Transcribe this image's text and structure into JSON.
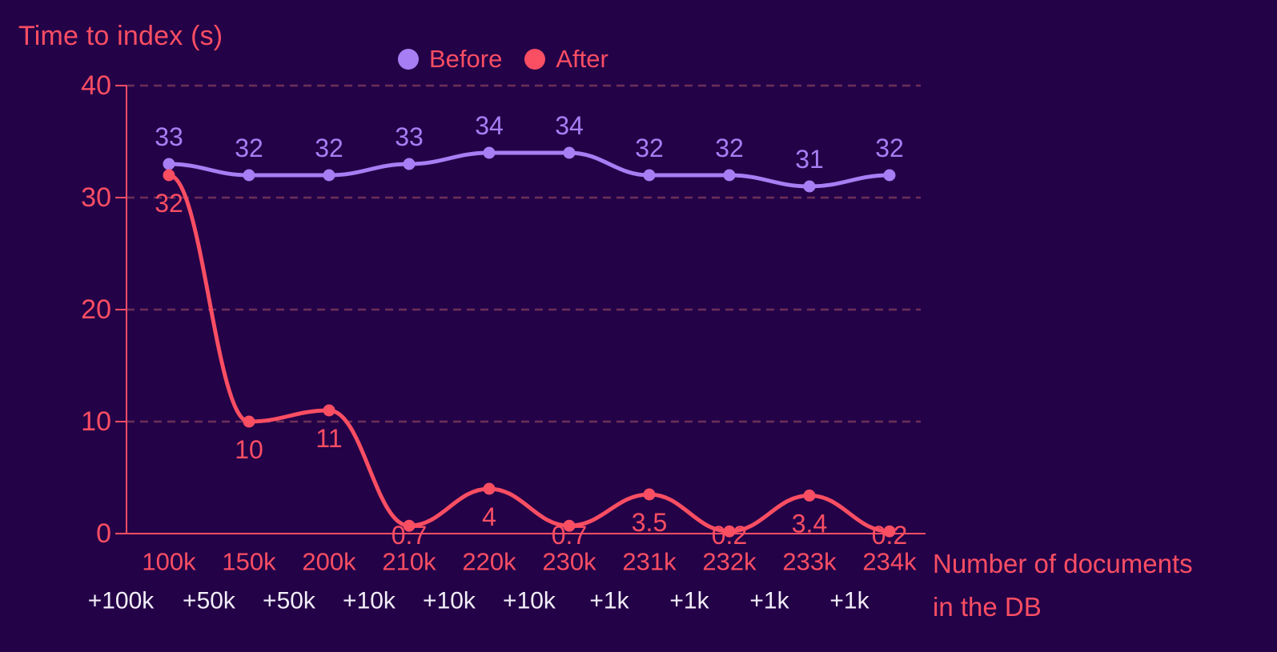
{
  "chart_data": {
    "type": "line",
    "title": "Time to index (s)",
    "x_axis_label_lines": [
      "Number of documents",
      "in the DB"
    ],
    "categories": [
      "100k",
      "150k",
      "200k",
      "210k",
      "220k",
      "230k",
      "231k",
      "232k",
      "233k",
      "234k"
    ],
    "delta_labels": [
      "+100k",
      "+50k",
      "+50k",
      "+10k",
      "+10k",
      "+10k",
      "+1k",
      "+1k",
      "+1k",
      "+1k"
    ],
    "y_ticks": [
      0,
      10,
      20,
      30,
      40
    ],
    "ylim": [
      0,
      40
    ],
    "grid": "horizontal-dashed",
    "legend_position": "top-center",
    "series": [
      {
        "name": "Before",
        "color": "#a77ef3",
        "values": [
          33,
          32,
          32,
          33,
          34,
          34,
          32,
          32,
          31,
          32
        ]
      },
      {
        "name": "After",
        "color": "#fa4e63",
        "values": [
          32,
          10,
          11,
          0.7,
          4,
          0.7,
          3.5,
          0.2,
          3.4,
          0.2
        ]
      }
    ],
    "colors": {
      "background": "#240248",
      "axis": "#fa4e63",
      "tick_text": "#fa4e63",
      "grid": "#6d3059",
      "delta_text": "#f2eef8"
    }
  }
}
